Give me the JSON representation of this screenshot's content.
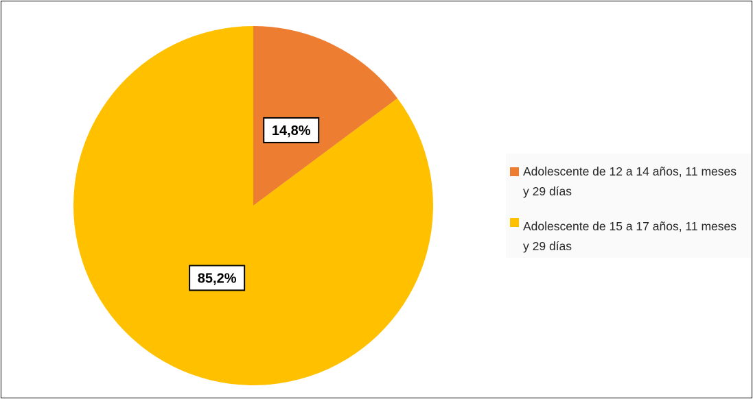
{
  "chart_data": {
    "type": "pie",
    "slices": [
      {
        "label": "Adolescente de 12 a 14 años, 11 meses y 29 días",
        "value": 14.8,
        "display": "14,8%",
        "color": "#ED7D31"
      },
      {
        "label": "Adolescente de 15 a 17 años, 11 meses y 29 días",
        "value": 85.2,
        "display": "85,2%",
        "color": "#FFC000"
      }
    ],
    "legend_position": "right",
    "data_labels": "percentage, boxed, bold"
  }
}
